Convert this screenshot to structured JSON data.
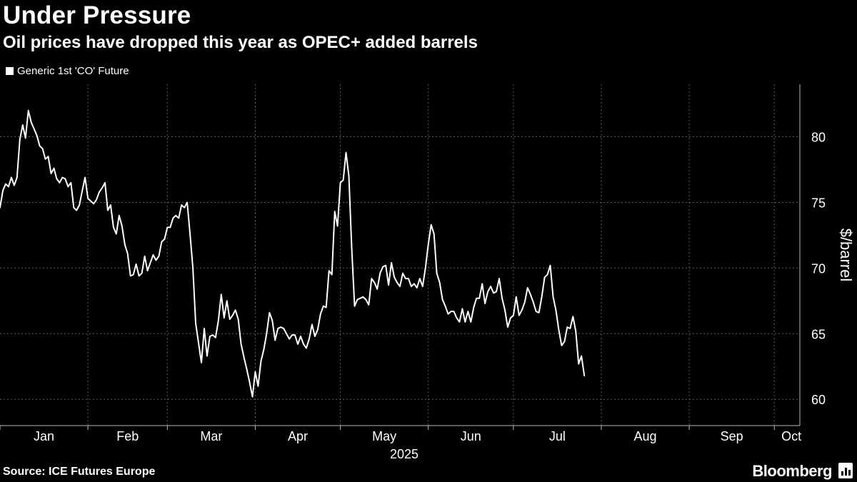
{
  "header": {
    "title": "Under Pressure",
    "subtitle": "Oil prices have dropped this year as OPEC+ added barrels"
  },
  "legend": {
    "label": "Generic 1st 'CO' Future",
    "icon": "square-swatch"
  },
  "footer": {
    "source": "Source: ICE Futures Europe",
    "brand": "Bloomberg",
    "brand_icon": "bloomberg-chart-icon"
  },
  "colors": {
    "background": "#000000",
    "line": "#ffffff",
    "grid": "#5a5a5a"
  },
  "chart_data": {
    "type": "line",
    "title": "Under Pressure",
    "subtitle": "Oil prices have dropped this year as OPEC+ added barrels",
    "xlabel": "2025",
    "ylabel": "$/barrel",
    "ylim": [
      58,
      84
    ],
    "yticks": [
      60,
      65,
      70,
      75,
      80
    ],
    "x_ticks": [
      "Jan",
      "Feb",
      "Mar",
      "Apr",
      "May",
      "Jun",
      "Jul",
      "Aug",
      "Sep",
      "Oct"
    ],
    "x_domain": [
      "2025-01-01",
      "2025-10-10"
    ],
    "grid": true,
    "legend_position": "top-left",
    "series": [
      {
        "name": "Generic 1st 'CO' Future",
        "points": [
          [
            "2025-01-01",
            74.6
          ],
          [
            "2025-01-02",
            75.9
          ],
          [
            "2025-01-03",
            76.4
          ],
          [
            "2025-01-04",
            76.2
          ],
          [
            "2025-01-05",
            76.9
          ],
          [
            "2025-01-06",
            76.3
          ],
          [
            "2025-01-07",
            76.9
          ],
          [
            "2025-01-08",
            79.8
          ],
          [
            "2025-01-09",
            80.9
          ],
          [
            "2025-01-10",
            79.9
          ],
          [
            "2025-01-11",
            82.0
          ],
          [
            "2025-01-12",
            81.1
          ],
          [
            "2025-01-13",
            80.6
          ],
          [
            "2025-01-14",
            80.1
          ],
          [
            "2025-01-15",
            79.3
          ],
          [
            "2025-01-16",
            79.1
          ],
          [
            "2025-01-17",
            78.3
          ],
          [
            "2025-01-18",
            78.5
          ],
          [
            "2025-01-19",
            77.2
          ],
          [
            "2025-01-20",
            77.6
          ],
          [
            "2025-01-21",
            76.8
          ],
          [
            "2025-01-22",
            76.5
          ],
          [
            "2025-01-23",
            76.9
          ],
          [
            "2025-01-24",
            76.8
          ],
          [
            "2025-01-25",
            76.2
          ],
          [
            "2025-01-26",
            76.5
          ],
          [
            "2025-01-27",
            74.6
          ],
          [
            "2025-01-28",
            74.4
          ],
          [
            "2025-01-29",
            74.8
          ],
          [
            "2025-01-30",
            75.9
          ],
          [
            "2025-01-31",
            76.9
          ],
          [
            "2025-02-01",
            75.3
          ],
          [
            "2025-02-03",
            74.9
          ],
          [
            "2025-02-04",
            75.2
          ],
          [
            "2025-02-05",
            75.8
          ],
          [
            "2025-02-06",
            76.1
          ],
          [
            "2025-02-07",
            76.5
          ],
          [
            "2025-02-08",
            74.4
          ],
          [
            "2025-02-09",
            74.8
          ],
          [
            "2025-02-10",
            73.1
          ],
          [
            "2025-02-11",
            72.6
          ],
          [
            "2025-02-12",
            74.0
          ],
          [
            "2025-02-13",
            73.2
          ],
          [
            "2025-02-14",
            71.8
          ],
          [
            "2025-02-15",
            71.1
          ],
          [
            "2025-02-16",
            69.4
          ],
          [
            "2025-02-17",
            69.5
          ],
          [
            "2025-02-18",
            70.3
          ],
          [
            "2025-02-19",
            69.4
          ],
          [
            "2025-02-20",
            69.6
          ],
          [
            "2025-02-21",
            70.9
          ],
          [
            "2025-02-22",
            69.8
          ],
          [
            "2025-02-23",
            70.4
          ],
          [
            "2025-02-24",
            71.0
          ],
          [
            "2025-02-25",
            70.6
          ],
          [
            "2025-02-26",
            70.9
          ],
          [
            "2025-02-27",
            72.0
          ],
          [
            "2025-02-28",
            72.2
          ],
          [
            "2025-03-01",
            73.1
          ],
          [
            "2025-03-02",
            73.1
          ],
          [
            "2025-03-03",
            73.8
          ],
          [
            "2025-03-04",
            74.0
          ],
          [
            "2025-03-05",
            73.8
          ],
          [
            "2025-03-06",
            74.8
          ],
          [
            "2025-03-07",
            74.6
          ],
          [
            "2025-03-08",
            75.0
          ],
          [
            "2025-03-09",
            72.6
          ],
          [
            "2025-03-10",
            70.0
          ],
          [
            "2025-03-11",
            65.8
          ],
          [
            "2025-03-12",
            64.3
          ],
          [
            "2025-03-13",
            62.8
          ],
          [
            "2025-03-14",
            65.4
          ],
          [
            "2025-03-15",
            63.3
          ],
          [
            "2025-03-16",
            64.8
          ],
          [
            "2025-03-17",
            64.9
          ],
          [
            "2025-03-18",
            64.7
          ],
          [
            "2025-03-19",
            66.0
          ],
          [
            "2025-03-20",
            68.0
          ],
          [
            "2025-03-21",
            66.2
          ],
          [
            "2025-03-22",
            67.5
          ],
          [
            "2025-03-23",
            66.1
          ],
          [
            "2025-03-24",
            66.4
          ],
          [
            "2025-03-25",
            66.8
          ],
          [
            "2025-03-26",
            66.1
          ],
          [
            "2025-03-27",
            64.2
          ],
          [
            "2025-03-28",
            63.2
          ],
          [
            "2025-03-29",
            62.3
          ],
          [
            "2025-03-30",
            61.3
          ],
          [
            "2025-03-31",
            60.2
          ],
          [
            "2025-04-01",
            62.1
          ],
          [
            "2025-04-02",
            61.0
          ],
          [
            "2025-04-03",
            62.9
          ],
          [
            "2025-04-04",
            63.8
          ],
          [
            "2025-04-05",
            65.0
          ],
          [
            "2025-04-06",
            66.6
          ],
          [
            "2025-04-07",
            66.0
          ],
          [
            "2025-04-08",
            64.5
          ],
          [
            "2025-04-09",
            65.4
          ],
          [
            "2025-04-10",
            65.5
          ],
          [
            "2025-04-11",
            65.4
          ],
          [
            "2025-04-12",
            65.0
          ],
          [
            "2025-04-13",
            64.6
          ],
          [
            "2025-04-14",
            64.9
          ],
          [
            "2025-04-15",
            64.9
          ],
          [
            "2025-04-16",
            64.2
          ],
          [
            "2025-04-17",
            64.8
          ],
          [
            "2025-04-18",
            64.2
          ],
          [
            "2025-04-19",
            63.9
          ],
          [
            "2025-04-20",
            64.6
          ],
          [
            "2025-04-21",
            65.7
          ],
          [
            "2025-04-22",
            64.8
          ],
          [
            "2025-04-23",
            65.3
          ],
          [
            "2025-04-24",
            66.5
          ],
          [
            "2025-04-25",
            67.1
          ],
          [
            "2025-04-26",
            67.0
          ],
          [
            "2025-04-27",
            69.8
          ],
          [
            "2025-04-28",
            69.5
          ],
          [
            "2025-04-29",
            74.3
          ],
          [
            "2025-04-30",
            73.2
          ],
          [
            "2025-05-01",
            76.5
          ],
          [
            "2025-05-02",
            76.7
          ],
          [
            "2025-05-03",
            78.8
          ],
          [
            "2025-05-04",
            77.0
          ],
          [
            "2025-05-05",
            71.5
          ],
          [
            "2025-05-06",
            67.1
          ],
          [
            "2025-05-07",
            67.6
          ],
          [
            "2025-05-08",
            67.7
          ],
          [
            "2025-05-09",
            67.8
          ],
          [
            "2025-05-10",
            67.6
          ],
          [
            "2025-05-11",
            67.2
          ],
          [
            "2025-05-12",
            69.2
          ],
          [
            "2025-05-13",
            68.9
          ],
          [
            "2025-05-14",
            68.4
          ],
          [
            "2025-05-15",
            69.6
          ],
          [
            "2025-05-16",
            70.1
          ],
          [
            "2025-05-17",
            70.2
          ],
          [
            "2025-05-18",
            68.7
          ],
          [
            "2025-05-19",
            70.4
          ],
          [
            "2025-05-20",
            69.3
          ],
          [
            "2025-05-21",
            68.9
          ],
          [
            "2025-05-22",
            68.6
          ],
          [
            "2025-05-23",
            69.6
          ],
          [
            "2025-05-24",
            69.2
          ],
          [
            "2025-05-25",
            69.2
          ],
          [
            "2025-05-26",
            68.6
          ],
          [
            "2025-05-27",
            68.8
          ],
          [
            "2025-05-28",
            68.5
          ],
          [
            "2025-05-29",
            69.2
          ],
          [
            "2025-05-30",
            68.6
          ],
          [
            "2025-05-31",
            70.0
          ],
          [
            "2025-06-01",
            71.8
          ],
          [
            "2025-06-02",
            73.3
          ],
          [
            "2025-06-03",
            72.6
          ],
          [
            "2025-06-04",
            69.6
          ],
          [
            "2025-06-05",
            68.9
          ],
          [
            "2025-06-06",
            67.6
          ],
          [
            "2025-06-07",
            67.1
          ],
          [
            "2025-06-08",
            66.5
          ],
          [
            "2025-06-09",
            66.7
          ],
          [
            "2025-06-10",
            66.7
          ],
          [
            "2025-06-11",
            66.2
          ],
          [
            "2025-06-12",
            65.9
          ],
          [
            "2025-06-13",
            66.9
          ],
          [
            "2025-06-14",
            65.9
          ],
          [
            "2025-06-15",
            66.7
          ],
          [
            "2025-06-16",
            65.9
          ],
          [
            "2025-06-17",
            67.0
          ],
          [
            "2025-06-18",
            67.7
          ],
          [
            "2025-06-19",
            67.7
          ],
          [
            "2025-06-20",
            68.8
          ],
          [
            "2025-06-21",
            67.3
          ],
          [
            "2025-06-22",
            68.2
          ],
          [
            "2025-06-23",
            68.6
          ],
          [
            "2025-06-24",
            68.1
          ],
          [
            "2025-06-25",
            68.2
          ],
          [
            "2025-06-26",
            69.2
          ],
          [
            "2025-06-27",
            67.7
          ],
          [
            "2025-06-28",
            66.8
          ],
          [
            "2025-06-29",
            65.5
          ],
          [
            "2025-06-30",
            66.2
          ],
          [
            "2025-07-01",
            66.4
          ],
          [
            "2025-07-02",
            67.8
          ],
          [
            "2025-07-03",
            66.4
          ],
          [
            "2025-07-04",
            66.8
          ],
          [
            "2025-07-05",
            67.4
          ],
          [
            "2025-07-06",
            68.5
          ],
          [
            "2025-07-07",
            68.0
          ],
          [
            "2025-07-08",
            67.4
          ],
          [
            "2025-07-09",
            66.7
          ],
          [
            "2025-07-10",
            66.6
          ],
          [
            "2025-07-11",
            67.8
          ],
          [
            "2025-07-12",
            69.3
          ],
          [
            "2025-07-13",
            69.5
          ],
          [
            "2025-07-14",
            70.2
          ],
          [
            "2025-07-15",
            67.8
          ],
          [
            "2025-07-16",
            66.8
          ],
          [
            "2025-07-17",
            65.3
          ],
          [
            "2025-07-18",
            64.1
          ],
          [
            "2025-07-19",
            64.4
          ],
          [
            "2025-07-20",
            65.5
          ],
          [
            "2025-07-21",
            65.4
          ],
          [
            "2025-07-22",
            66.3
          ],
          [
            "2025-07-23",
            65.2
          ],
          [
            "2025-07-24",
            62.7
          ],
          [
            "2025-07-25",
            63.3
          ],
          [
            "2025-07-26",
            61.8
          ]
        ]
      }
    ]
  }
}
